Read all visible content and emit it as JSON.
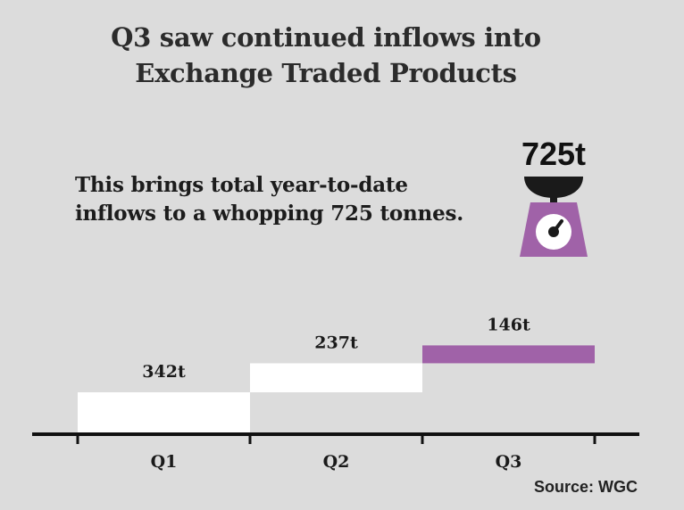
{
  "title": {
    "line1": "Q3 saw continued inflows into",
    "line2": "Exchange Traded Products"
  },
  "subtitle": {
    "line1": "This brings total year-to-date",
    "line2": "inflows to a whopping 725 tonnes."
  },
  "total_label": "725t",
  "source": "Source: WGC",
  "colors": {
    "background": "#dcdcdc",
    "bar_default": "#ffffff",
    "bar_highlight": "#a062a8",
    "axis": "#111111"
  },
  "icons": {
    "scale": "scale-icon"
  },
  "chart_data": {
    "type": "bar",
    "subtype": "waterfall",
    "title": "Q3 saw continued inflows into Exchange Traded Products",
    "categories": [
      "Q1",
      "Q2",
      "Q3"
    ],
    "values": [
      342,
      237,
      146
    ],
    "value_labels": [
      "342t",
      "237t",
      "146t"
    ],
    "highlight": "Q3",
    "unit": "tonnes",
    "total": 725,
    "xlabel": "",
    "ylabel": "",
    "ylim": [
      0,
      750
    ]
  }
}
